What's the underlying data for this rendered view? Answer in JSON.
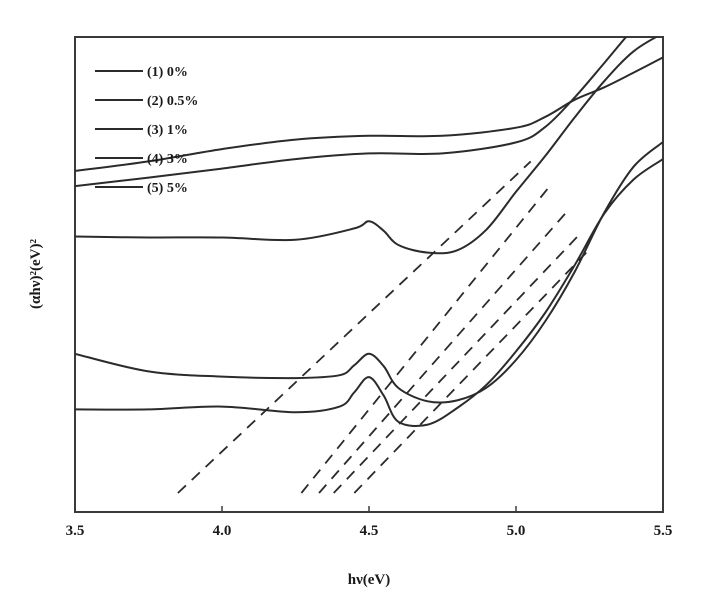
{
  "chart_data": {
    "type": "line",
    "title": "",
    "xlabel": "hν(eV)",
    "ylabel": "(αhν)²(eV)²",
    "xlim": [
      3.5,
      5.5
    ],
    "ylim": [
      0,
      1
    ],
    "x_ticks": [
      "3.5",
      "4.0",
      "4.5",
      "5.0",
      "5.5"
    ],
    "grid": false,
    "legend_position": "top-left",
    "line_color": "#2b2b2b",
    "series": [
      {
        "name": "(1) 0%",
        "x": [
          3.5,
          3.75,
          4.0,
          4.25,
          4.4,
          4.45,
          4.5,
          4.55,
          4.6,
          4.7,
          4.8,
          4.9,
          5.0,
          5.1,
          5.2,
          5.3,
          5.4,
          5.5
        ],
        "y": [
          0.333,
          0.296,
          0.285,
          0.282,
          0.288,
          0.309,
          0.333,
          0.307,
          0.261,
          0.233,
          0.235,
          0.262,
          0.32,
          0.402,
          0.506,
          0.63,
          0.727,
          0.779
        ]
      },
      {
        "name": "(2) 0.5%",
        "x": [
          3.5,
          3.75,
          4.0,
          4.25,
          4.4,
          4.45,
          4.5,
          4.55,
          4.6,
          4.7,
          4.8,
          4.9,
          5.0,
          5.1,
          5.2,
          5.3,
          5.4,
          5.5
        ],
        "y": [
          0.216,
          0.216,
          0.222,
          0.21,
          0.222,
          0.252,
          0.284,
          0.245,
          0.19,
          0.184,
          0.219,
          0.268,
          0.338,
          0.42,
          0.52,
          0.628,
          0.7,
          0.743
        ]
      },
      {
        "name": "(3) 1%",
        "x": [
          3.5,
          3.75,
          4.0,
          4.25,
          4.5,
          4.75,
          5.0,
          5.1,
          5.2,
          5.3,
          5.4,
          5.5
        ],
        "y": [
          0.718,
          0.738,
          0.764,
          0.784,
          0.792,
          0.792,
          0.809,
          0.832,
          0.868,
          0.894,
          0.925,
          0.957
        ]
      },
      {
        "name": "(4) 3%",
        "x": [
          3.5,
          3.75,
          4.0,
          4.25,
          4.5,
          4.75,
          5.0,
          5.1,
          5.2,
          5.3,
          5.4,
          5.5
        ],
        "y": [
          0.686,
          0.704,
          0.723,
          0.743,
          0.755,
          0.755,
          0.778,
          0.811,
          0.873,
          0.945,
          1.018,
          1.08
        ]
      },
      {
        "name": "(5) 5%",
        "x": [
          3.5,
          3.75,
          4.0,
          4.25,
          4.45,
          4.5,
          4.55,
          4.6,
          4.7,
          4.8,
          4.9,
          5.0,
          5.1,
          5.2,
          5.3,
          5.4,
          5.5
        ],
        "y": [
          0.58,
          0.578,
          0.578,
          0.573,
          0.597,
          0.612,
          0.592,
          0.562,
          0.546,
          0.551,
          0.595,
          0.674,
          0.75,
          0.831,
          0.907,
          0.97,
          1.008
        ]
      }
    ],
    "fit_lines": [
      {
        "x": [
          3.85,
          5.05
        ],
        "y": [
          0.04,
          0.738
        ]
      },
      {
        "x": [
          4.27,
          5.12
        ],
        "y": [
          0.04,
          0.69
        ]
      },
      {
        "x": [
          4.33,
          5.17
        ],
        "y": [
          0.04,
          0.63
        ]
      },
      {
        "x": [
          4.38,
          5.22
        ],
        "y": [
          0.04,
          0.587
        ]
      },
      {
        "x": [
          4.45,
          5.25
        ],
        "y": [
          0.04,
          0.553
        ]
      }
    ]
  }
}
